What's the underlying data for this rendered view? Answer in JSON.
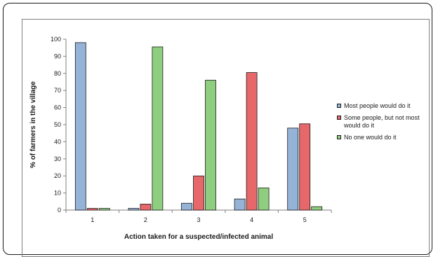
{
  "chart_data": {
    "type": "bar",
    "title": "",
    "xlabel": "Action taken for a suspected/infected animal",
    "ylabel": "% of farmers in the village",
    "categories": [
      "1",
      "2",
      "3",
      "4",
      "5"
    ],
    "ylim": [
      0,
      100
    ],
    "yticks": [
      0,
      10,
      20,
      30,
      40,
      50,
      60,
      70,
      80,
      90,
      100
    ],
    "grid": false,
    "legend_position": "right",
    "series": [
      {
        "name": "Most people would do it",
        "color": "#95b3d7",
        "values": [
          98,
          1,
          4,
          6.5,
          48
        ]
      },
      {
        "name": "Some people, but not most would do it",
        "color": "#e6686a",
        "values": [
          1,
          3.5,
          20,
          80.5,
          50.5
        ]
      },
      {
        "name": "No one would do it",
        "color": "#8fce7e",
        "values": [
          1,
          95.5,
          76,
          13,
          2
        ]
      }
    ]
  },
  "legend": {
    "most": "Most people would do it",
    "some": "Some people, but not most would do it",
    "none": "No one would do it"
  }
}
